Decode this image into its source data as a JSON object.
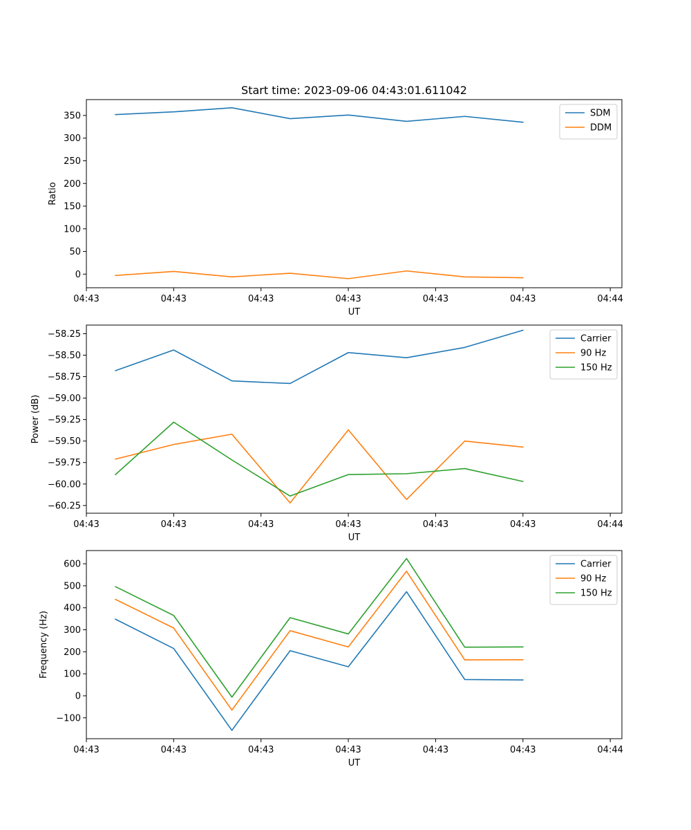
{
  "chart_data": [
    {
      "type": "line",
      "title": "Start time: 2023-09-06 04:43:01.611042",
      "xlabel": "UT",
      "ylabel": "Ratio",
      "xlim": [
        0,
        9.2
      ],
      "ylim": [
        -30,
        385
      ],
      "x": [
        0.5,
        1.5,
        2.5,
        3.5,
        4.5,
        5.5,
        6.5,
        7.5
      ],
      "xticks": [
        0,
        1.5,
        3,
        4.5,
        6,
        7.5,
        9
      ],
      "xtick_labels": [
        "04:43",
        "04:43",
        "04:43",
        "04:43",
        "04:43",
        "04:43",
        "04:44"
      ],
      "yticks": [
        0,
        50,
        100,
        150,
        200,
        250,
        300,
        350
      ],
      "ytick_labels": [
        "0",
        "50",
        "100",
        "150",
        "200",
        "250",
        "300",
        "350"
      ],
      "legend": "top-right",
      "series": [
        {
          "name": "SDM",
          "color": "#1f77b4",
          "values": [
            352,
            358,
            367,
            343,
            351,
            337,
            348,
            335
          ]
        },
        {
          "name": "DDM",
          "color": "#ff7f0e",
          "values": [
            -3,
            6,
            -6,
            2,
            -10,
            7,
            -6,
            -8
          ]
        }
      ]
    },
    {
      "type": "line",
      "title": "",
      "xlabel": "UT",
      "ylabel": "Power (dB)",
      "xlim": [
        0,
        9.2
      ],
      "ylim": [
        -60.34,
        -58.15
      ],
      "x": [
        0.5,
        1.5,
        2.5,
        3.5,
        4.5,
        5.5,
        6.5,
        7.5
      ],
      "xticks": [
        0,
        1.5,
        3,
        4.5,
        6,
        7.5,
        9
      ],
      "xtick_labels": [
        "04:43",
        "04:43",
        "04:43",
        "04:43",
        "04:43",
        "04:43",
        "04:44"
      ],
      "yticks": [
        -60.25,
        -60.0,
        -59.75,
        -59.5,
        -59.25,
        -59.0,
        -58.75,
        -58.5,
        -58.25
      ],
      "ytick_labels": [
        "−60.25",
        "−60.00",
        "−59.75",
        "−59.50",
        "−59.25",
        "−59.00",
        "−58.75",
        "−58.50",
        "−58.25"
      ],
      "legend": "top-right",
      "series": [
        {
          "name": "Carrier",
          "color": "#1f77b4",
          "values": [
            -58.68,
            -58.44,
            -58.8,
            -58.83,
            -58.47,
            -58.53,
            -58.41,
            -58.21
          ]
        },
        {
          "name": "90 Hz",
          "color": "#ff7f0e",
          "values": [
            -59.71,
            -59.54,
            -59.42,
            -60.22,
            -59.37,
            -60.18,
            -59.5,
            -59.57
          ]
        },
        {
          "name": "150 Hz",
          "color": "#2ca02c",
          "values": [
            -59.89,
            -59.28,
            -59.72,
            -60.14,
            -59.89,
            -59.88,
            -59.82,
            -59.97
          ]
        }
      ]
    },
    {
      "type": "line",
      "title": "",
      "xlabel": "UT",
      "ylabel": "Frequency (Hz)",
      "xlim": [
        0,
        9.2
      ],
      "ylim": [
        -195,
        660
      ],
      "x": [
        0.5,
        1.5,
        2.5,
        3.5,
        4.5,
        5.5,
        6.5,
        7.5
      ],
      "xticks": [
        0,
        1.5,
        3,
        4.5,
        6,
        7.5,
        9
      ],
      "xtick_labels": [
        "04:43",
        "04:43",
        "04:43",
        "04:43",
        "04:43",
        "04:43",
        "04:44"
      ],
      "yticks": [
        -100,
        0,
        100,
        200,
        300,
        400,
        500,
        600
      ],
      "ytick_labels": [
        "−100",
        "0",
        "100",
        "200",
        "300",
        "400",
        "500",
        "600"
      ],
      "legend": "top-right",
      "series": [
        {
          "name": "Carrier",
          "color": "#1f77b4",
          "values": [
            348,
            215,
            -157,
            205,
            132,
            473,
            74,
            72
          ]
        },
        {
          "name": "90 Hz",
          "color": "#ff7f0e",
          "values": [
            438,
            308,
            -65,
            296,
            222,
            566,
            163,
            164
          ]
        },
        {
          "name": "150 Hz",
          "color": "#2ca02c",
          "values": [
            496,
            365,
            -6,
            355,
            281,
            624,
            221,
            222
          ]
        }
      ]
    }
  ]
}
